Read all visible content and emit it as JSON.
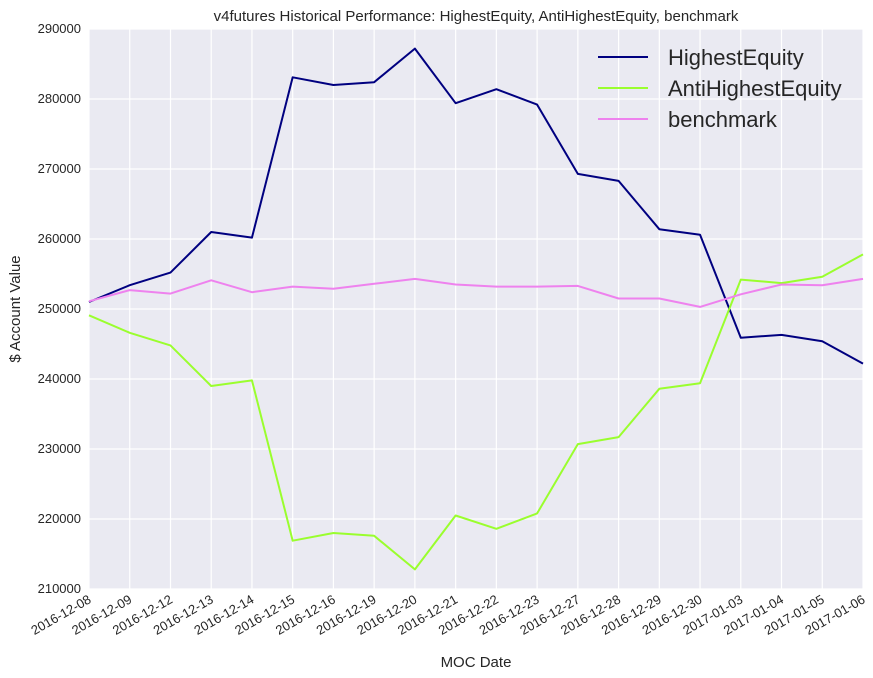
{
  "chart_data": {
    "type": "line",
    "title": "v4futures Historical Performance: HighestEquity, AntiHighestEquity, benchmark",
    "xlabel": "MOC Date",
    "ylabel": "$ Account Value",
    "ylim": [
      210000,
      290000
    ],
    "yticks": [
      210000,
      220000,
      230000,
      240000,
      250000,
      260000,
      270000,
      280000,
      290000
    ],
    "grid": true,
    "legend_position": "top-right",
    "categories": [
      "2016-12-08",
      "2016-12-09",
      "2016-12-12",
      "2016-12-13",
      "2016-12-14",
      "2016-12-15",
      "2016-12-16",
      "2016-12-19",
      "2016-12-20",
      "2016-12-21",
      "2016-12-22",
      "2016-12-23",
      "2016-12-27",
      "2016-12-28",
      "2016-12-29",
      "2016-12-30",
      "2017-01-03",
      "2017-01-04",
      "2017-01-05",
      "2017-01-06"
    ],
    "series": [
      {
        "name": "HighestEquity",
        "color": "#000080",
        "values": [
          251000,
          253400,
          255200,
          261000,
          260200,
          283100,
          282000,
          282400,
          287200,
          279400,
          281400,
          279200,
          269300,
          268300,
          261400,
          260600,
          245900,
          246300,
          245400,
          242200
        ]
      },
      {
        "name": "AntiHighestEquity",
        "color": "#9AFE2E",
        "values": [
          249100,
          246600,
          244800,
          239000,
          239800,
          216900,
          218000,
          217600,
          212800,
          220500,
          218600,
          220800,
          230700,
          231700,
          238600,
          239400,
          254200,
          253700,
          254600,
          257800
        ]
      },
      {
        "name": "benchmark",
        "color": "#EE82EE",
        "values": [
          251100,
          252700,
          252200,
          254100,
          252400,
          253200,
          252900,
          253600,
          254300,
          253500,
          253200,
          253200,
          253300,
          251500,
          251500,
          250300,
          252100,
          253500,
          253400,
          254300
        ]
      }
    ]
  }
}
